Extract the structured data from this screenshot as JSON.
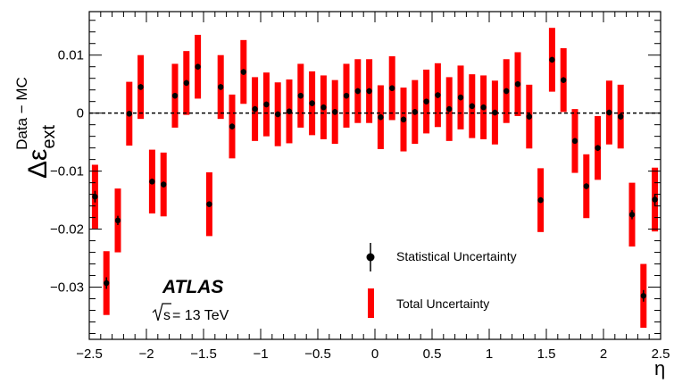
{
  "chart_data": {
    "type": "scatter",
    "xlabel": "η",
    "ylabel_main": "Δε",
    "ylabel_sub": "ext",
    "ylabel_sup": "Data − MC",
    "xlim": [
      -2.5,
      2.5
    ],
    "ylim": [
      -0.039,
      0.0175
    ],
    "x_ticks": [
      -2.5,
      -2,
      -1.5,
      -1,
      -0.5,
      0,
      0.5,
      1,
      1.5,
      2,
      2.5
    ],
    "x_tick_labels": [
      "−2.5",
      "−2",
      "−1.5",
      "−1",
      "−0.5",
      "0",
      "0.5",
      "1",
      "1.5",
      "2",
      "2.5"
    ],
    "y_ticks": [
      0.01,
      0,
      -0.01,
      -0.02,
      -0.03
    ],
    "y_tick_labels": [
      "0.01",
      "0",
      "−0.01",
      "−0.02",
      "−0.03"
    ],
    "zero_line": true,
    "colors": {
      "marker": "#000000",
      "total_band": "#ff0000"
    },
    "series": [
      {
        "name": "Statistical Uncertainty",
        "points": [
          {
            "x": -2.45,
            "y": -0.0144,
            "stat": 0.001,
            "total": 0.0055
          },
          {
            "x": -2.35,
            "y": -0.0293,
            "stat": 0.001,
            "total": 0.0055
          },
          {
            "x": -2.25,
            "y": -0.0185,
            "stat": 0.0008,
            "total": 0.0055
          },
          {
            "x": -2.15,
            "y": -0.0001,
            "stat": 0.0005,
            "total": 0.0055
          },
          {
            "x": -2.05,
            "y": 0.0045,
            "stat": 0.0005,
            "total": 0.0055
          },
          {
            "x": -1.95,
            "y": -0.0118,
            "stat": 0.0005,
            "total": 0.0055
          },
          {
            "x": -1.85,
            "y": -0.0123,
            "stat": 0.0005,
            "total": 0.0055
          },
          {
            "x": -1.75,
            "y": 0.003,
            "stat": 0.0005,
            "total": 0.0055
          },
          {
            "x": -1.65,
            "y": 0.0052,
            "stat": 0.0005,
            "total": 0.0055
          },
          {
            "x": -1.55,
            "y": 0.008,
            "stat": 0.0005,
            "total": 0.0055
          },
          {
            "x": -1.45,
            "y": -0.0157,
            "stat": 0.0005,
            "total": 0.0055
          },
          {
            "x": -1.35,
            "y": 0.0045,
            "stat": 0.0005,
            "total": 0.0055
          },
          {
            "x": -1.25,
            "y": -0.0023,
            "stat": 0.0005,
            "total": 0.0055
          },
          {
            "x": -1.15,
            "y": 0.0071,
            "stat": 0.0005,
            "total": 0.0055
          },
          {
            "x": -1.05,
            "y": 0.0007,
            "stat": 0.0005,
            "total": 0.0055
          },
          {
            "x": -0.95,
            "y": 0.0015,
            "stat": 0.0005,
            "total": 0.0055
          },
          {
            "x": -0.85,
            "y": -0.0002,
            "stat": 0.0005,
            "total": 0.0055
          },
          {
            "x": -0.75,
            "y": 0.0003,
            "stat": 0.0005,
            "total": 0.0055
          },
          {
            "x": -0.65,
            "y": 0.003,
            "stat": 0.0005,
            "total": 0.0055
          },
          {
            "x": -0.55,
            "y": 0.0017,
            "stat": 0.0005,
            "total": 0.0055
          },
          {
            "x": -0.45,
            "y": 0.001,
            "stat": 0.0005,
            "total": 0.0055
          },
          {
            "x": -0.35,
            "y": 0.0002,
            "stat": 0.0005,
            "total": 0.0055
          },
          {
            "x": -0.25,
            "y": 0.003,
            "stat": 0.0005,
            "total": 0.0055
          },
          {
            "x": -0.15,
            "y": 0.0038,
            "stat": 0.0005,
            "total": 0.0055
          },
          {
            "x": -0.05,
            "y": 0.0038,
            "stat": 0.0005,
            "total": 0.0055
          },
          {
            "x": 0.05,
            "y": -0.0007,
            "stat": 0.0005,
            "total": 0.0055
          },
          {
            "x": 0.15,
            "y": 0.0043,
            "stat": 0.0005,
            "total": 0.0055
          },
          {
            "x": 0.25,
            "y": -0.0011,
            "stat": 0.0005,
            "total": 0.0055
          },
          {
            "x": 0.35,
            "y": 0.0002,
            "stat": 0.0005,
            "total": 0.0055
          },
          {
            "x": 0.45,
            "y": 0.002,
            "stat": 0.0005,
            "total": 0.0055
          },
          {
            "x": 0.55,
            "y": 0.0031,
            "stat": 0.0005,
            "total": 0.0055
          },
          {
            "x": 0.65,
            "y": 0.0007,
            "stat": 0.0005,
            "total": 0.0055
          },
          {
            "x": 0.75,
            "y": 0.0027,
            "stat": 0.0005,
            "total": 0.0055
          },
          {
            "x": 0.85,
            "y": 0.0012,
            "stat": 0.0005,
            "total": 0.0055
          },
          {
            "x": 0.95,
            "y": 0.001,
            "stat": 0.0005,
            "total": 0.0055
          },
          {
            "x": 1.05,
            "y": 0.0001,
            "stat": 0.0005,
            "total": 0.0055
          },
          {
            "x": 1.15,
            "y": 0.0038,
            "stat": 0.0005,
            "total": 0.0055
          },
          {
            "x": 1.25,
            "y": 0.005,
            "stat": 0.0005,
            "total": 0.0055
          },
          {
            "x": 1.35,
            "y": -0.0006,
            "stat": 0.0005,
            "total": 0.0055
          },
          {
            "x": 1.45,
            "y": -0.015,
            "stat": 0.0005,
            "total": 0.0055
          },
          {
            "x": 1.55,
            "y": 0.0092,
            "stat": 0.0005,
            "total": 0.0055
          },
          {
            "x": 1.65,
            "y": 0.0057,
            "stat": 0.0005,
            "total": 0.0055
          },
          {
            "x": 1.75,
            "y": -0.0048,
            "stat": 0.0005,
            "total": 0.0055
          },
          {
            "x": 1.85,
            "y": -0.0126,
            "stat": 0.0005,
            "total": 0.0055
          },
          {
            "x": 1.95,
            "y": -0.006,
            "stat": 0.0005,
            "total": 0.0055
          },
          {
            "x": 2.05,
            "y": 0.0001,
            "stat": 0.0005,
            "total": 0.0055
          },
          {
            "x": 2.15,
            "y": -0.0006,
            "stat": 0.0005,
            "total": 0.0055
          },
          {
            "x": 2.25,
            "y": -0.0175,
            "stat": 0.0008,
            "total": 0.0055
          },
          {
            "x": 2.35,
            "y": -0.0315,
            "stat": 0.001,
            "total": 0.0055
          },
          {
            "x": 2.45,
            "y": -0.0149,
            "stat": 0.001,
            "total": 0.0055
          }
        ]
      }
    ],
    "legend": [
      {
        "label": "Statistical Uncertainty",
        "style": "marker-with-errorbar"
      },
      {
        "label": "Total Uncertainty",
        "style": "red-band"
      }
    ],
    "legend_position": "bottom-right",
    "annotations": {
      "experiment": "ATLAS",
      "energy_prefix": "s",
      "energy_text": " = 13 TeV"
    }
  }
}
